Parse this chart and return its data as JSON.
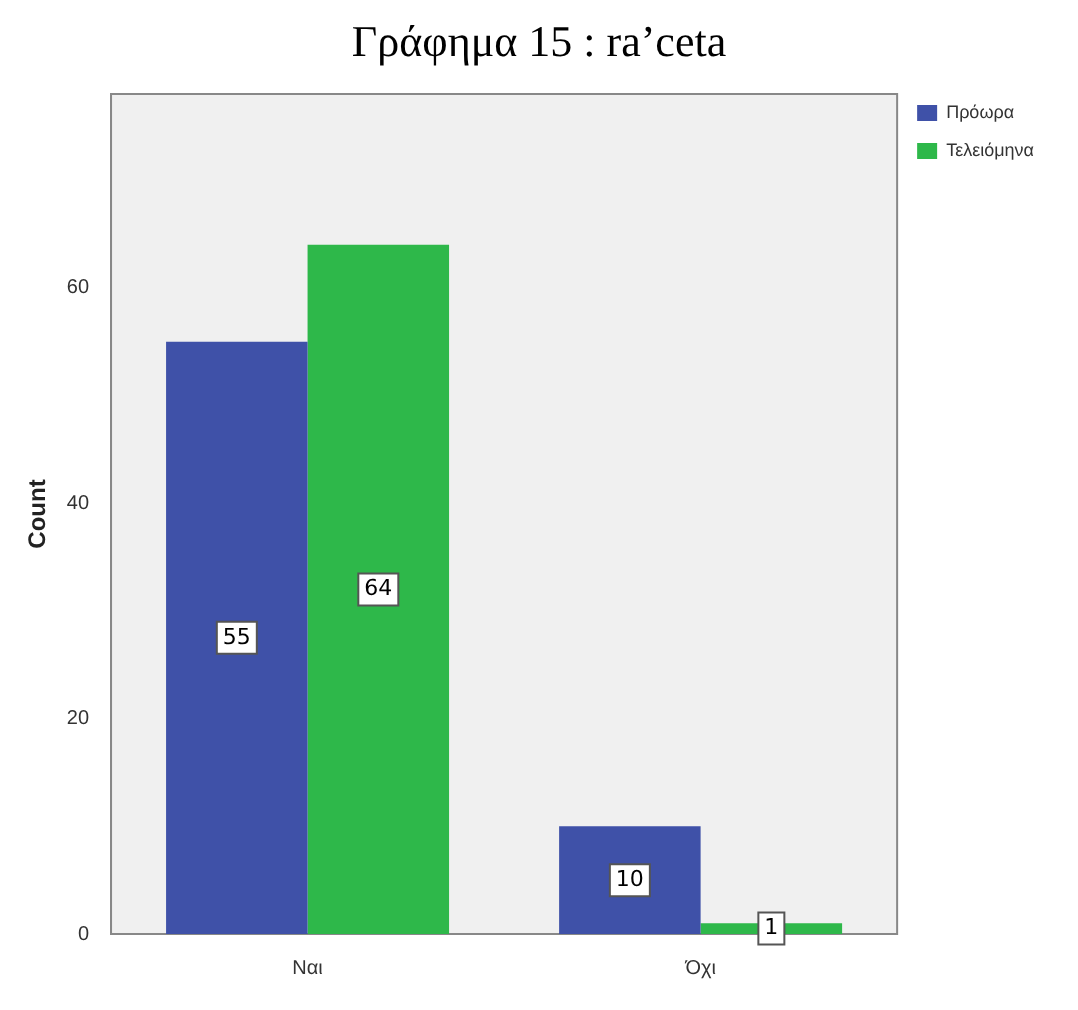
{
  "chart_data": {
    "type": "bar",
    "title": "Γράφημα 15 : ra’ceta",
    "ylabel": "Count",
    "categories": [
      "Ναι",
      "Όχι"
    ],
    "series": [
      {
        "name": "Πρόωρα",
        "color": "#3f51a8",
        "values": [
          55,
          10
        ]
      },
      {
        "name": "Τελειόμηνα",
        "color": "#2eb84a",
        "values": [
          64,
          1
        ]
      }
    ],
    "ylim": [
      0,
      78
    ],
    "yticks": [
      0,
      20,
      40,
      60
    ],
    "grid": false,
    "legend": "top right",
    "data_labels": true
  }
}
